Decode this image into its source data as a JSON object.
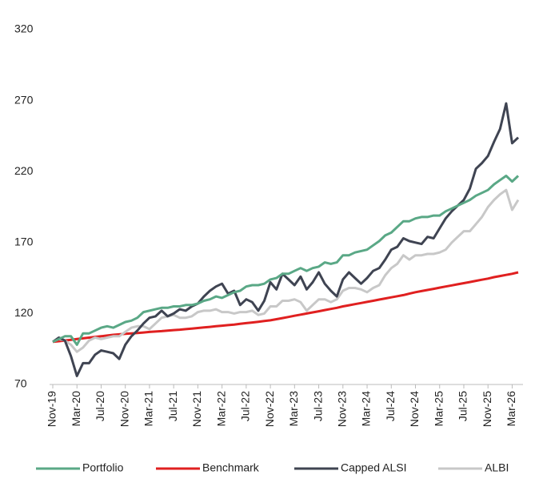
{
  "chart_data": {
    "type": "line",
    "categories": [
      "Nov-19",
      null,
      null,
      null,
      "Mar-20",
      null,
      null,
      null,
      "Jul-20",
      null,
      null,
      null,
      "Nov-20",
      null,
      null,
      null,
      "Mar-21",
      null,
      null,
      null,
      "Jul-21",
      null,
      null,
      null,
      "Nov-21",
      null,
      null,
      null,
      "Mar-22",
      null,
      null,
      null,
      "Jul-22",
      null,
      null,
      null,
      "Nov-22",
      null,
      null,
      null,
      "Mar-23",
      null,
      null,
      null,
      "Jul-23",
      null,
      null,
      null,
      "Nov-23",
      null,
      null,
      null,
      "Mar-24",
      null,
      null,
      null,
      "Jul-24",
      null,
      null,
      null,
      "Nov-24",
      null,
      null,
      null,
      "Mar-25",
      null,
      null,
      null,
      "Jul-25",
      null,
      null,
      null,
      "Nov-25",
      null,
      null,
      null,
      "Mar-26",
      null
    ],
    "series": [
      {
        "name": "Portfolio",
        "color": "#5aa886",
        "values": [
          100,
          102,
          104,
          104,
          98,
          106,
          106,
          108,
          110,
          111,
          110,
          112,
          114,
          115,
          117,
          121,
          122,
          123,
          124,
          124,
          125,
          125,
          126,
          126,
          127,
          129,
          130,
          132,
          131,
          133,
          135,
          136,
          139,
          140,
          140,
          141,
          144,
          145,
          148,
          148,
          150,
          152,
          150,
          152,
          153,
          156,
          155,
          156,
          161,
          161,
          163,
          164,
          165,
          168,
          171,
          175,
          177,
          181,
          185,
          185,
          187,
          188,
          188,
          189,
          189,
          192,
          194,
          196,
          198,
          200,
          203,
          205,
          207,
          211,
          214,
          217,
          213,
          217
        ]
      },
      {
        "name": "Benchmark",
        "color": "#e02020",
        "values": [
          100,
          100.5,
          101,
          101.5,
          102,
          102.5,
          103,
          103.5,
          104,
          104.5,
          105,
          105.3,
          105.7,
          106,
          106.3,
          106.6,
          107,
          107.3,
          107.6,
          108,
          108.3,
          108.6,
          109,
          109.4,
          109.8,
          110.2,
          110.6,
          111,
          111.4,
          111.8,
          112.2,
          112.7,
          113.2,
          113.7,
          114.2,
          114.7,
          115.2,
          116,
          116.8,
          117.6,
          118.4,
          119.2,
          120,
          120.8,
          121.6,
          122.4,
          123.2,
          124,
          125,
          125.8,
          126.6,
          127.4,
          128.2,
          129,
          129.8,
          130.6,
          131.4,
          132.2,
          133,
          134,
          135,
          135.8,
          136.6,
          137.4,
          138.2,
          139,
          139.8,
          140.6,
          141.4,
          142.2,
          143,
          143.8,
          144.6,
          145.6,
          146.4,
          147.2,
          148,
          149
        ]
      },
      {
        "name": "Capped ALSI",
        "color": "#3f4452",
        "values": [
          100,
          103,
          101,
          90,
          76,
          85,
          85,
          91,
          94,
          93,
          92,
          88,
          98,
          104,
          108,
          113,
          117,
          118,
          122,
          118,
          120,
          123,
          122,
          125,
          127,
          132,
          136,
          139,
          141,
          134,
          136,
          126,
          130,
          128,
          122,
          129,
          142,
          137,
          148,
          144,
          140,
          146,
          137,
          142,
          149,
          141,
          136,
          132,
          144,
          149,
          145,
          141,
          145,
          150,
          152,
          158,
          165,
          167,
          173,
          171,
          170,
          169,
          174,
          173,
          180,
          187,
          192,
          196,
          200,
          208,
          222,
          226,
          231,
          241,
          250,
          268,
          240,
          244
        ]
      },
      {
        "name": "ALBI",
        "color": "#c8c8c8",
        "values": [
          100,
          102,
          101,
          98,
          93,
          96,
          101,
          103,
          102,
          103,
          104,
          104,
          107,
          110,
          111,
          111,
          109,
          113,
          117,
          118,
          119,
          117,
          117,
          118,
          121,
          122,
          122,
          123,
          121,
          121,
          120,
          121,
          121,
          122,
          119,
          120,
          125,
          125,
          129,
          129,
          130,
          128,
          122,
          126,
          130,
          130,
          128,
          130,
          136,
          138,
          138,
          137,
          135,
          138,
          140,
          147,
          152,
          155,
          161,
          158,
          161,
          161,
          162,
          162,
          163,
          165,
          170,
          174,
          178,
          178,
          183,
          188,
          195,
          200,
          204,
          207,
          193,
          200
        ]
      }
    ],
    "ylim": [
      70,
      320
    ],
    "yticks": [
      70,
      120,
      170,
      220,
      270,
      320
    ],
    "grid": false,
    "legend": "bottom"
  }
}
